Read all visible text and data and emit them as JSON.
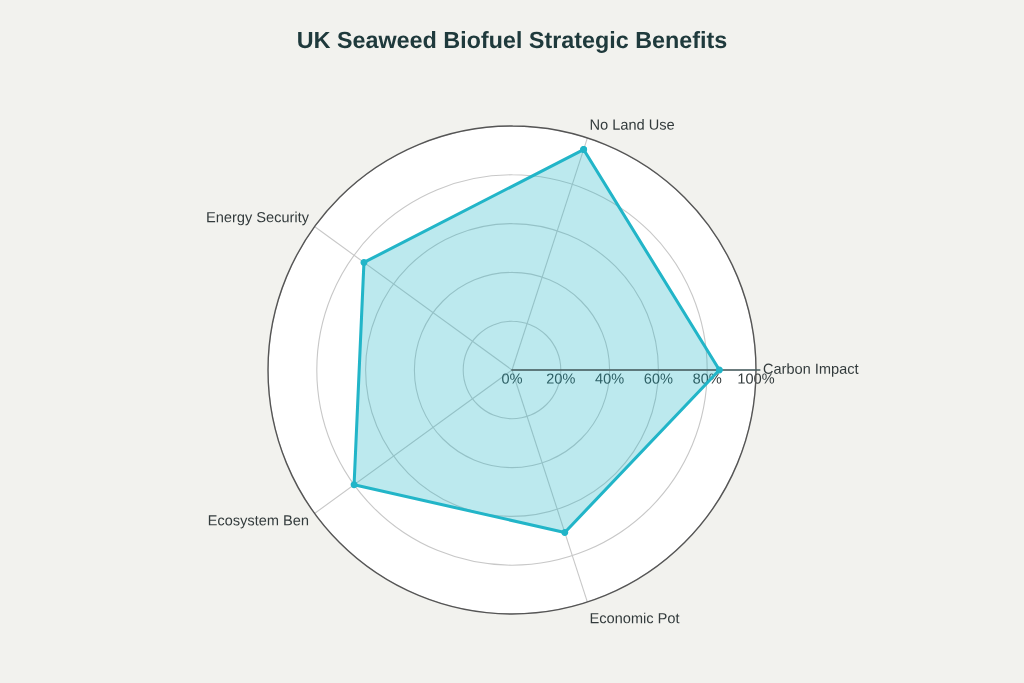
{
  "chart_data": {
    "type": "radar",
    "title": "UK Seaweed Biofuel Strategic Benefits",
    "categories": [
      "No Land Use",
      "Carbon Impact",
      "Economic Pot",
      "Ecosystem Ben",
      "Energy Security"
    ],
    "series": [
      {
        "color": "#22b5c8",
        "values": [
          95,
          85,
          70,
          80,
          75
        ]
      }
    ],
    "ylim": [
      0,
      100
    ],
    "yticks": [
      {
        "value": 0,
        "label": "0%"
      },
      {
        "value": 20,
        "label": "20%"
      },
      {
        "value": 40,
        "label": "40%"
      },
      {
        "value": 60,
        "label": "60%"
      },
      {
        "value": 80,
        "label": "80%"
      },
      {
        "value": 100,
        "label": "100%"
      }
    ],
    "marker": "circle",
    "grid": true
  }
}
